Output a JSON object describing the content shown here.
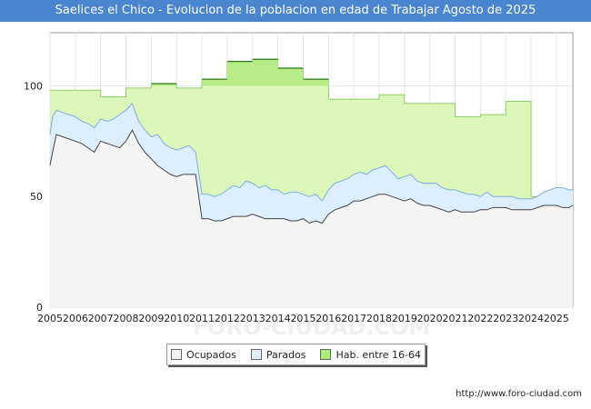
{
  "title": "Saelices el Chico - Evolucion de la poblacion en edad de Trabajar Agosto de 2025",
  "footer": "http://www.foro-ciudad.com",
  "watermark": "FORO-CIUDAD.COM",
  "legend": [
    {
      "label": "Ocupados",
      "color": "#f2f2f2"
    },
    {
      "label": "Parados",
      "color": "#ddeeff"
    },
    {
      "label": "Hab. entre 16-64",
      "color": "#aaee77"
    }
  ],
  "colors": {
    "hab_fill": "#ddf7bb",
    "hab_line": "#2b7a1e",
    "parados_fill": "#ddeeff",
    "parados_line": "#7eaee0",
    "ocupados_fill": "#f4f4f4",
    "ocupados_line": "#444444",
    "title_bg": "#4a86d0"
  },
  "chart_data": {
    "type": "area",
    "title": "Saelices el Chico - Evolucion de la poblacion en edad de Trabajar Agosto de 2025",
    "xlim": [
      2005,
      2025.65
    ],
    "ylim": [
      0,
      124
    ],
    "yticks": [
      0,
      50,
      100
    ],
    "xticks": [
      "2005",
      "2006",
      "2007",
      "2008",
      "2009",
      "2010",
      "2011",
      "2012",
      "2013",
      "2014",
      "2015",
      "2016",
      "2017",
      "2018",
      "2019",
      "2020",
      "2021",
      "2022",
      "2023",
      "2024",
      "2025"
    ],
    "grid": true,
    "legend_position": "bottom",
    "series": [
      {
        "name": "Hab. entre 16-64",
        "step": true,
        "x": [
          2005,
          2006,
          2007,
          2008,
          2009,
          2010,
          2011,
          2012,
          2013,
          2014,
          2015,
          2016,
          2017,
          2018,
          2019,
          2020,
          2021,
          2022,
          2023,
          2024
        ],
        "values": [
          98,
          98,
          95,
          99,
          101,
          99,
          103,
          111,
          112,
          108,
          103,
          94,
          94,
          96,
          92,
          92,
          86,
          87,
          93,
          50
        ]
      },
      {
        "name": "Parados",
        "x": [
          2005,
          2005.1,
          2005.25,
          2005.5,
          2005.75,
          2006,
          2006.25,
          2006.5,
          2006.75,
          2007,
          2007.25,
          2007.5,
          2007.75,
          2008,
          2008.25,
          2008.5,
          2008.75,
          2009,
          2009.25,
          2009.5,
          2009.75,
          2010,
          2010.25,
          2010.5,
          2010.75,
          2011,
          2011.25,
          2011.5,
          2011.75,
          2012,
          2012.25,
          2012.5,
          2012.75,
          2013,
          2013.25,
          2013.5,
          2013.75,
          2014,
          2014.25,
          2014.5,
          2014.75,
          2015,
          2015.25,
          2015.5,
          2015.75,
          2016,
          2016.25,
          2016.5,
          2016.75,
          2017,
          2017.25,
          2017.5,
          2017.75,
          2018,
          2018.25,
          2018.5,
          2018.75,
          2019,
          2019.25,
          2019.5,
          2019.75,
          2020,
          2020.25,
          2020.5,
          2020.75,
          2021,
          2021.25,
          2021.5,
          2021.75,
          2022,
          2022.25,
          2022.5,
          2022.75,
          2023,
          2023.25,
          2023.5,
          2023.75,
          2024,
          2024.25,
          2024.5,
          2024.75,
          2025,
          2025.25,
          2025.5,
          2025.65
        ],
        "values": [
          78,
          86,
          89,
          88,
          87,
          86,
          84,
          83,
          81,
          85,
          84,
          85,
          87,
          89,
          92,
          84,
          80,
          77,
          78,
          74,
          72,
          71,
          72,
          73,
          70,
          51,
          51,
          50,
          51,
          53,
          55,
          54,
          57,
          56,
          54,
          55,
          53,
          53,
          51,
          52,
          52,
          51,
          50,
          51,
          48,
          53,
          56,
          57,
          58,
          60,
          61,
          60,
          62,
          63,
          64,
          61,
          58,
          59,
          60,
          57,
          56,
          56,
          56,
          54,
          53,
          53,
          52,
          51,
          51,
          50,
          52,
          50,
          50,
          50,
          50,
          49,
          49,
          49,
          50,
          52,
          53,
          54,
          54,
          53,
          53
        ]
      },
      {
        "name": "Ocupados",
        "x": [
          2005,
          2005.1,
          2005.25,
          2005.5,
          2005.75,
          2006,
          2006.25,
          2006.5,
          2006.75,
          2007,
          2007.25,
          2007.5,
          2007.75,
          2008,
          2008.25,
          2008.5,
          2008.75,
          2009,
          2009.25,
          2009.5,
          2009.75,
          2010,
          2010.25,
          2010.5,
          2010.75,
          2011,
          2011.25,
          2011.5,
          2011.75,
          2012,
          2012.25,
          2012.5,
          2012.75,
          2013,
          2013.25,
          2013.5,
          2013.75,
          2014,
          2014.25,
          2014.5,
          2014.75,
          2015,
          2015.25,
          2015.5,
          2015.75,
          2016,
          2016.25,
          2016.5,
          2016.75,
          2017,
          2017.25,
          2017.5,
          2017.75,
          2018,
          2018.25,
          2018.5,
          2018.75,
          2019,
          2019.25,
          2019.5,
          2019.75,
          2020,
          2020.25,
          2020.5,
          2020.75,
          2021,
          2021.25,
          2021.5,
          2021.75,
          2022,
          2022.25,
          2022.5,
          2022.75,
          2023,
          2023.25,
          2023.5,
          2023.75,
          2024,
          2024.25,
          2024.5,
          2024.75,
          2025,
          2025.25,
          2025.5,
          2025.65
        ],
        "values": [
          64,
          70,
          78,
          77,
          76,
          75,
          74,
          72,
          70,
          75,
          74,
          73,
          72,
          75,
          80,
          74,
          70,
          67,
          64,
          62,
          60,
          59,
          60,
          60,
          60,
          40,
          40,
          39,
          39,
          40,
          41,
          41,
          41,
          42,
          41,
          40,
          40,
          40,
          40,
          39,
          39,
          40,
          38,
          39,
          38,
          42,
          44,
          45,
          46,
          48,
          48,
          49,
          50,
          51,
          51,
          50,
          49,
          48,
          49,
          47,
          46,
          46,
          45,
          44,
          43,
          44,
          43,
          43,
          43,
          44,
          44,
          45,
          45,
          45,
          44,
          44,
          44,
          44,
          45,
          46,
          46,
          46,
          45,
          45,
          46
        ]
      }
    ]
  }
}
